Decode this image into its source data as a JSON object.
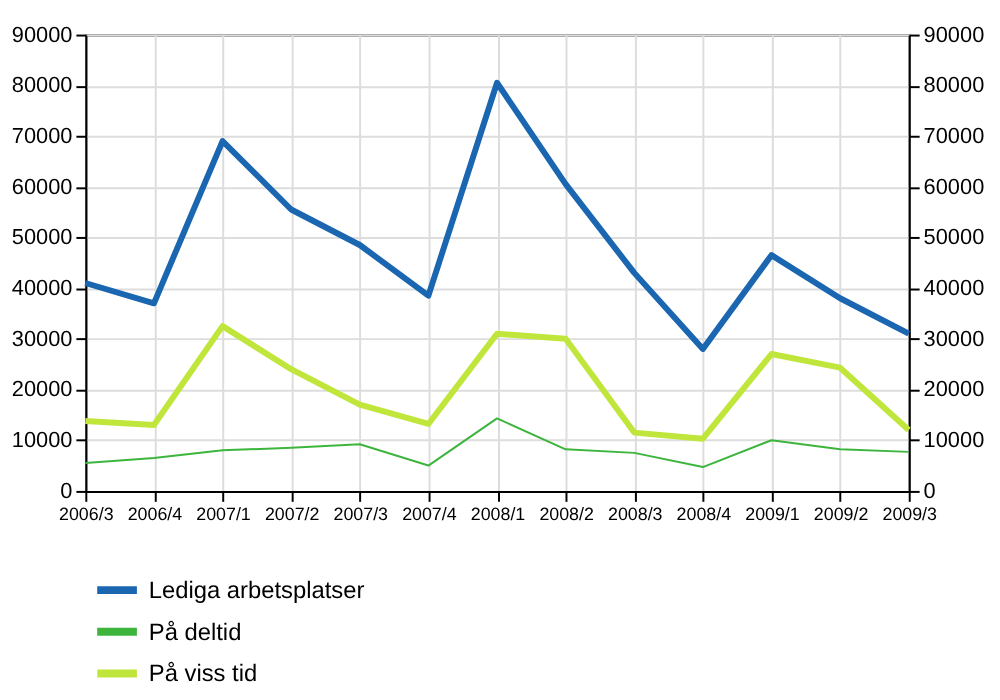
{
  "chart_data": {
    "type": "line",
    "categories": [
      "2006/3",
      "2006/4",
      "2007/1",
      "2007/2",
      "2007/3",
      "2007/4",
      "2008/1",
      "2008/2",
      "2008/3",
      "2008/4",
      "2009/1",
      "2009/2",
      "2009/3"
    ],
    "series": [
      {
        "name": "Lediga arbetsplatser",
        "color": "#1a66b0",
        "values": [
          41000,
          37000,
          69000,
          55500,
          48500,
          38500,
          80500,
          60500,
          43000,
          28000,
          46500,
          38000,
          31000
        ]
      },
      {
        "name": "På deltid",
        "color": "#3db53d",
        "values": [
          5500,
          6500,
          8000,
          8500,
          9200,
          5000,
          14300,
          8200,
          7500,
          4700,
          10000,
          8200,
          7700
        ]
      },
      {
        "name": "På viss tid",
        "color": "#c0e63c",
        "values": [
          13800,
          13000,
          32500,
          24000,
          17000,
          13200,
          31000,
          30000,
          11500,
          10300,
          27000,
          24300,
          12000
        ]
      }
    ],
    "ylim": [
      0,
      90000
    ],
    "yticks": [
      0,
      10000,
      20000,
      30000,
      40000,
      50000,
      60000,
      70000,
      80000,
      90000
    ],
    "y2lim": [
      0,
      90000
    ],
    "y2ticks": [
      0,
      10000,
      20000,
      30000,
      40000,
      50000,
      60000,
      70000,
      80000,
      90000
    ],
    "grid": true,
    "legend": "bottom",
    "marker": "none",
    "line_style": "solid"
  }
}
